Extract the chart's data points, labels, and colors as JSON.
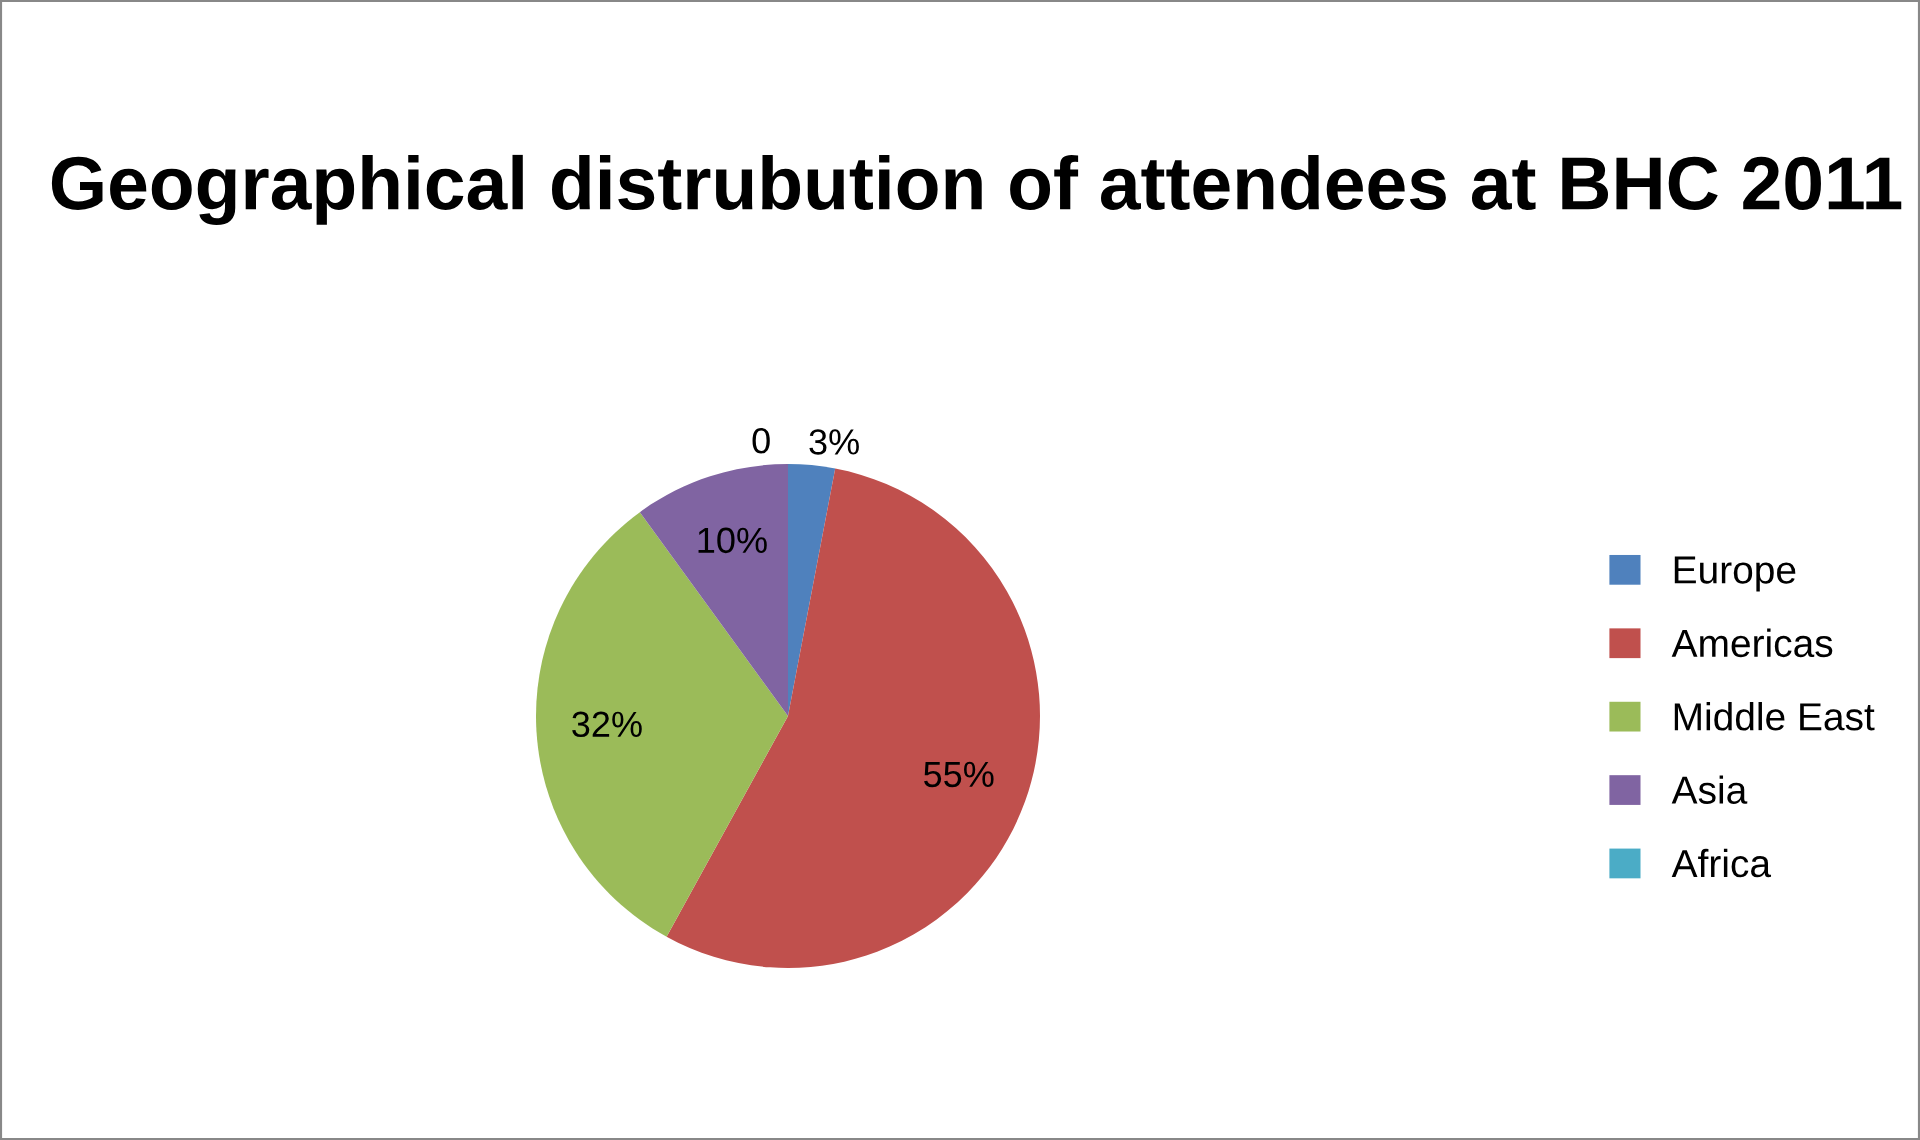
{
  "chart_data": {
    "type": "pie",
    "title": "Geographical distrubution of attendees at BHC 2011",
    "categories": [
      "Europe",
      "Americas",
      "Middle East",
      "Asia",
      "Africa"
    ],
    "values": [
      3,
      55,
      32,
      10,
      0
    ],
    "colors": [
      "#4f81bd",
      "#c0504d",
      "#9bbb59",
      "#8064a2",
      "#4bacc6"
    ],
    "value_labels": [
      "3%",
      "55%",
      "32%",
      "10%",
      "0"
    ],
    "legend": "right"
  }
}
